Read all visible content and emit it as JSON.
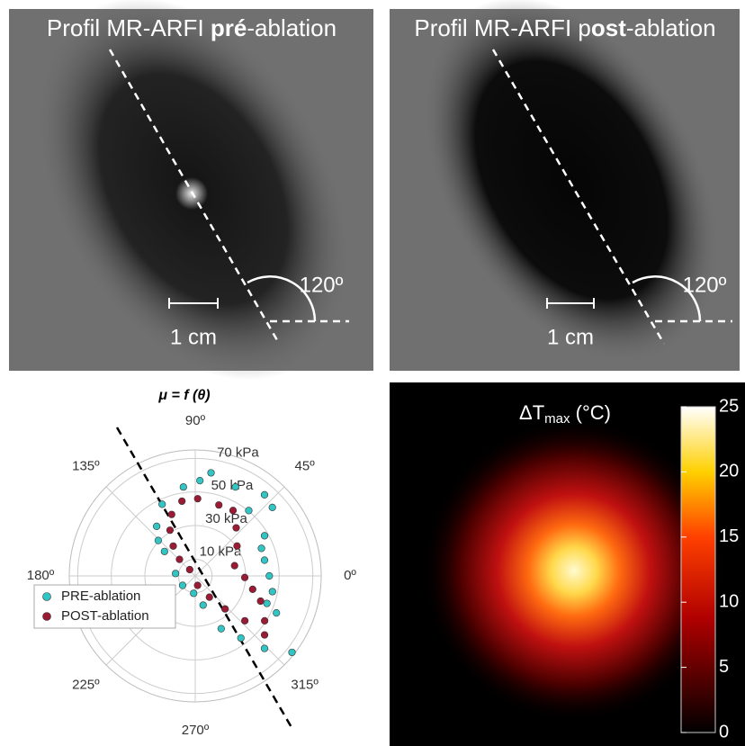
{
  "panels": {
    "pre": {
      "title": [
        "Profil MR-ARFI ",
        "pré",
        "-ablation"
      ],
      "scale_label": "1 cm",
      "angle_label": "120º"
    },
    "post": {
      "title": [
        "Profil MR-ARFI p",
        "ost",
        "-ablation"
      ],
      "scale_label": "1 cm",
      "angle_label": "120º"
    }
  },
  "heatmap": {
    "title": [
      "ΔT",
      "max",
      " (°C)"
    ]
  },
  "chart_data": [
    {
      "type": "polar",
      "title": "μ = f (θ)",
      "rlim": [
        0,
        75
      ],
      "rticks": [
        {
          "value": 10,
          "label": "10 kPa"
        },
        {
          "value": 30,
          "label": "30 kPa"
        },
        {
          "value": 50,
          "label": "50 kPa"
        },
        {
          "value": 70,
          "label": "70 kPa"
        }
      ],
      "thetaticks": [
        {
          "value": 0,
          "label": "0º"
        },
        {
          "value": 45,
          "label": "45º"
        },
        {
          "value": 90,
          "label": "90º"
        },
        {
          "value": 135,
          "label": "135º"
        },
        {
          "value": 180,
          "label": "180º"
        },
        {
          "value": 225,
          "label": "225º"
        },
        {
          "value": 270,
          "label": "270º"
        },
        {
          "value": 315,
          "label": "315º"
        }
      ],
      "legend": "lower left",
      "series": [
        {
          "name": "PRE-ablation",
          "color": "#33c4c4",
          "theta": [
            81.3,
            97.6,
            65.7,
            49.5,
            114.8,
            127.9,
            136.2,
            41.6,
            30.1,
            141.5,
            22.6,
            173,
            12.8,
            0,
            216.9,
            348.5,
            264.8,
            339,
            285.1,
            335.5,
            296.2,
            306.3,
            313.7,
            321.7,
            50.7,
            87.2
          ],
          "r": [
            62.1,
            53.4,
            58.1,
            63.5,
            47.0,
            37.4,
            30.5,
            61.4,
            47.7,
            23.4,
            42.7,
            11.8,
            42.3,
            44.1,
            9.4,
            46.9,
            10.4,
            45.7,
            18.0,
            53.1,
            35.0,
            45.9,
            59.7,
            73.4,
            50.3,
            56.8
          ]
        },
        {
          "name": "POST-ablation",
          "color": "#9b1b35",
          "theta": [
            88.2,
            71.6,
            100.1,
            111,
            118.9,
            126.4,
            133.6,
            131.2,
            60,
            49.6,
            35.6,
            14.6,
            358.2,
            346.9,
            338.9,
            327.1,
            319.6,
            317.9,
            312.1,
            303.7,
            284
          ],
          "r": [
            46.0,
            44.5,
            45.2,
            39.2,
            31.1,
            22.1,
            13.6,
            5.0,
            45.0,
            37.6,
            30.6,
            24.2,
            29.5,
            35.1,
            41.7,
            49.2,
            54.2,
            39.8,
            26.5,
            15.2,
            5.8
          ]
        }
      ]
    },
    {
      "type": "colorbar",
      "clim": [
        0,
        25
      ],
      "ticks": [
        0,
        5,
        10,
        15,
        20,
        25
      ]
    }
  ]
}
